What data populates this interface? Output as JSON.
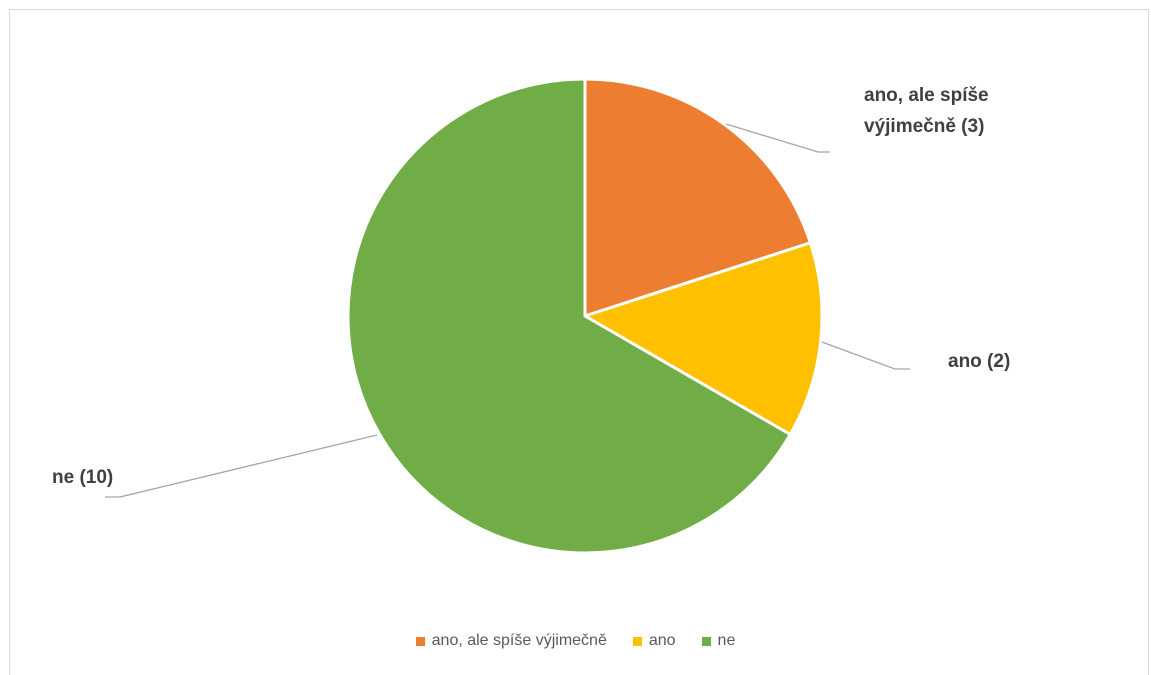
{
  "chart_data": {
    "type": "pie",
    "title": "",
    "categories": [
      "ano, ale spíše výjimečně",
      "ano",
      "ne"
    ],
    "values": [
      3,
      2,
      10
    ],
    "colors": [
      "#ed7d31",
      "#ffc000",
      "#70ad47"
    ],
    "data_labels": [
      "ano, ale spíše výjimečně (3)",
      "ano (2)",
      "ne (10)"
    ],
    "legend": {
      "position": "bottom",
      "entries": [
        "ano, ale spíše výjimečně",
        "ano",
        "ne"
      ]
    }
  }
}
